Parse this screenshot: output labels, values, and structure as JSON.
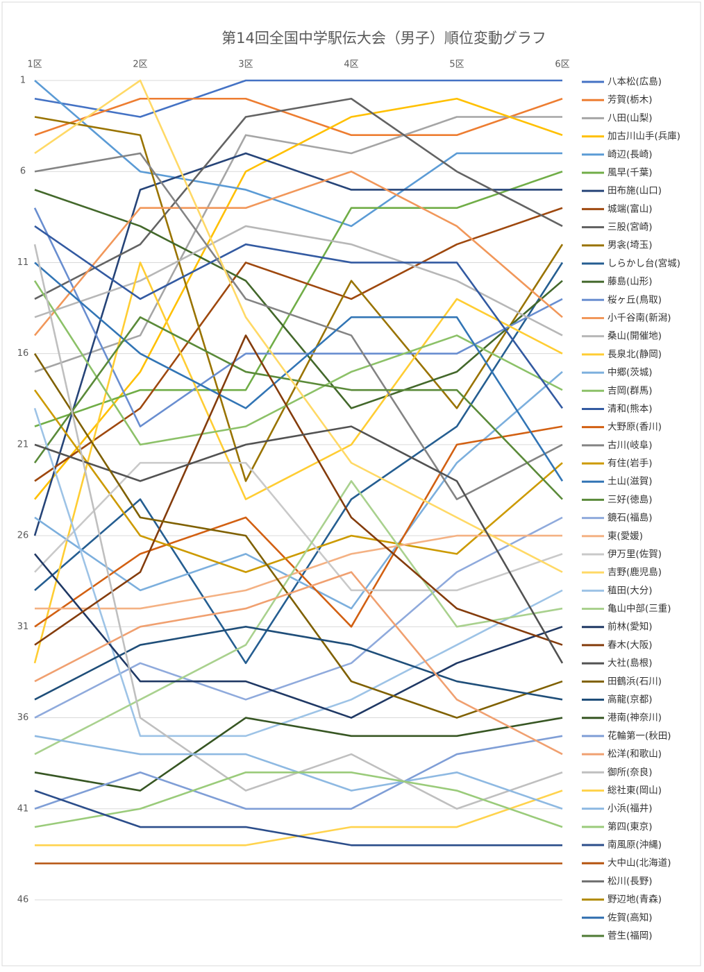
{
  "chart_data": {
    "type": "line",
    "title": "第14回全国中学駅伝大会（男子）順位変動グラフ",
    "categories": [
      "1区",
      "2区",
      "3区",
      "4区",
      "5区",
      "6区"
    ],
    "ylim": [
      1,
      46
    ],
    "y_reversed": true,
    "yticks": [
      1,
      6,
      11,
      16,
      21,
      26,
      31,
      36,
      41,
      46
    ],
    "grid": true,
    "legend": "right",
    "series": [
      {
        "name": "八本松(広島)",
        "color": "#4472C4",
        "values": [
          2,
          3,
          1,
          1,
          1,
          1
        ]
      },
      {
        "name": "芳賀(栃木)",
        "color": "#ED7D31",
        "values": [
          4,
          2,
          2,
          4,
          4,
          2
        ]
      },
      {
        "name": "八田(山梨)",
        "color": "#A5A5A5",
        "values": [
          17,
          15,
          4,
          5,
          3,
          3
        ]
      },
      {
        "name": "加古川山手(兵庫)",
        "color": "#FFC000",
        "values": [
          24,
          17,
          6,
          3,
          2,
          4
        ]
      },
      {
        "name": "崎辺(長崎)",
        "color": "#5B9BD5",
        "values": [
          1,
          6,
          7,
          9,
          5,
          5
        ]
      },
      {
        "name": "風早(千葉)",
        "color": "#70AD47",
        "values": [
          20,
          18,
          18,
          8,
          8,
          6
        ]
      },
      {
        "name": "田布施(山口)",
        "color": "#264478",
        "values": [
          26,
          7,
          5,
          7,
          7,
          7
        ]
      },
      {
        "name": "城端(富山)",
        "color": "#9E480E",
        "values": [
          23,
          19,
          11,
          13,
          10,
          8
        ]
      },
      {
        "name": "三股(宮崎)",
        "color": "#636363",
        "values": [
          13,
          10,
          3,
          2,
          6,
          9
        ]
      },
      {
        "name": "男衾(埼玉)",
        "color": "#997300",
        "values": [
          3,
          4,
          23,
          12,
          19,
          10
        ]
      },
      {
        "name": "しらかし台(宮城)",
        "color": "#255E91",
        "values": [
          29,
          24,
          33,
          24,
          20,
          11
        ]
      },
      {
        "name": "藤島(山形)",
        "color": "#43682B",
        "values": [
          7,
          9,
          12,
          19,
          17,
          12
        ]
      },
      {
        "name": "桜ヶ丘(鳥取)",
        "color": "#698ED0",
        "values": [
          8,
          20,
          16,
          16,
          16,
          13
        ]
      },
      {
        "name": "小千谷南(新潟)",
        "color": "#F1975A",
        "values": [
          15,
          8,
          8,
          6,
          9,
          14
        ]
      },
      {
        "name": "桑山(開催地)",
        "color": "#B7B7B7",
        "values": [
          14,
          12,
          9,
          10,
          12,
          15
        ]
      },
      {
        "name": "長泉北(静岡)",
        "color": "#FFCD33",
        "values": [
          33,
          11,
          24,
          21,
          13,
          16
        ]
      },
      {
        "name": "中郷(茨城)",
        "color": "#7CAFDD",
        "values": [
          25,
          29,
          27,
          30,
          22,
          17
        ]
      },
      {
        "name": "吉岡(群馬)",
        "color": "#8CC168",
        "values": [
          12,
          21,
          20,
          17,
          15,
          18
        ]
      },
      {
        "name": "清和(熊本)",
        "color": "#335AA1",
        "values": [
          9,
          13,
          10,
          11,
          11,
          19
        ]
      },
      {
        "name": "大野原(香川)",
        "color": "#D26012",
        "values": [
          31,
          27,
          25,
          31,
          21,
          20
        ]
      },
      {
        "name": "古川(岐阜)",
        "color": "#848484",
        "values": [
          6,
          5,
          13,
          15,
          24,
          21
        ]
      },
      {
        "name": "有住(岩手)",
        "color": "#CC9A00",
        "values": [
          18,
          26,
          28,
          26,
          27,
          22
        ]
      },
      {
        "name": "土山(滋賀)",
        "color": "#3275B5",
        "values": [
          11,
          16,
          19,
          14,
          14,
          23
        ]
      },
      {
        "name": "三好(徳島)",
        "color": "#5A8A39",
        "values": [
          22,
          14,
          17,
          18,
          18,
          24
        ]
      },
      {
        "name": "鏡石(福島)",
        "color": "#8FAADC",
        "values": [
          36,
          33,
          35,
          33,
          28,
          25
        ]
      },
      {
        "name": "東(愛媛)",
        "color": "#F4B183",
        "values": [
          30,
          30,
          29,
          27,
          26,
          26
        ]
      },
      {
        "name": "伊万里(佐賀)",
        "color": "#C9C9C9",
        "values": [
          28,
          22,
          22,
          29,
          29,
          27
        ]
      },
      {
        "name": "吉野(鹿児島)",
        "color": "#FFD966",
        "values": [
          5,
          1,
          14,
          22,
          25,
          28
        ]
      },
      {
        "name": "稙田(大分)",
        "color": "#9DC3E6",
        "values": [
          19,
          37,
          37,
          35,
          32,
          29
        ]
      },
      {
        "name": "亀山中部(三重)",
        "color": "#A9D18E",
        "values": [
          38,
          35,
          32,
          23,
          31,
          30
        ]
      },
      {
        "name": "前林(愛知)",
        "color": "#1F3864",
        "values": [
          27,
          34,
          34,
          36,
          33,
          31
        ]
      },
      {
        "name": "春木(大阪)",
        "color": "#843C0C",
        "values": [
          32,
          28,
          15,
          25,
          30,
          32
        ]
      },
      {
        "name": "大社(島根)",
        "color": "#525252",
        "values": [
          21,
          23,
          21,
          20,
          23,
          33
        ]
      },
      {
        "name": "田鶴浜(石川)",
        "color": "#7F6000",
        "values": [
          16,
          25,
          26,
          34,
          36,
          34
        ]
      },
      {
        "name": "高龍(京都)",
        "color": "#1F4E79",
        "values": [
          35,
          32,
          31,
          32,
          34,
          35
        ]
      },
      {
        "name": "港南(神奈川)",
        "color": "#375623",
        "values": [
          39,
          40,
          36,
          37,
          37,
          36
        ]
      },
      {
        "name": "花輪第一(秋田)",
        "color": "#7F9ED6",
        "values": [
          41,
          39,
          41,
          41,
          38,
          37
        ]
      },
      {
        "name": "松洋(和歌山)",
        "color": "#F0A070",
        "values": [
          34,
          31,
          30,
          28,
          35,
          38
        ]
      },
      {
        "name": "御所(奈良)",
        "color": "#BFBFBF",
        "values": [
          10,
          36,
          40,
          38,
          41,
          39
        ]
      },
      {
        "name": "総社東(岡山)",
        "color": "#FFD34D",
        "values": [
          43,
          43,
          43,
          42,
          42,
          40
        ]
      },
      {
        "name": "小浜(福井)",
        "color": "#8EB9E2",
        "values": [
          37,
          38,
          38,
          40,
          39,
          41
        ]
      },
      {
        "name": "第四(東京)",
        "color": "#9ACB7A",
        "values": [
          42,
          41,
          39,
          39,
          40,
          42
        ]
      },
      {
        "name": "南風原(沖縄)",
        "color": "#2B4D8A",
        "values": [
          40,
          42,
          42,
          43,
          43,
          43
        ]
      },
      {
        "name": "大中山(北海道)",
        "color": "#B5540F",
        "values": [
          44,
          44,
          44,
          44,
          44,
          44
        ]
      },
      {
        "name": "松川(長野)",
        "color": "#6E6E6E",
        "values": [
          null,
          null,
          null,
          null,
          null,
          null
        ]
      },
      {
        "name": "野辺地(青森)",
        "color": "#B08A00",
        "values": [
          null,
          null,
          null,
          null,
          null,
          null
        ]
      },
      {
        "name": "佐賀(高知)",
        "color": "#2E6DAE",
        "values": [
          null,
          null,
          null,
          null,
          null,
          null
        ]
      },
      {
        "name": "菅生(福岡)",
        "color": "#4E7A33",
        "values": [
          null,
          null,
          null,
          null,
          null,
          null
        ]
      }
    ]
  }
}
